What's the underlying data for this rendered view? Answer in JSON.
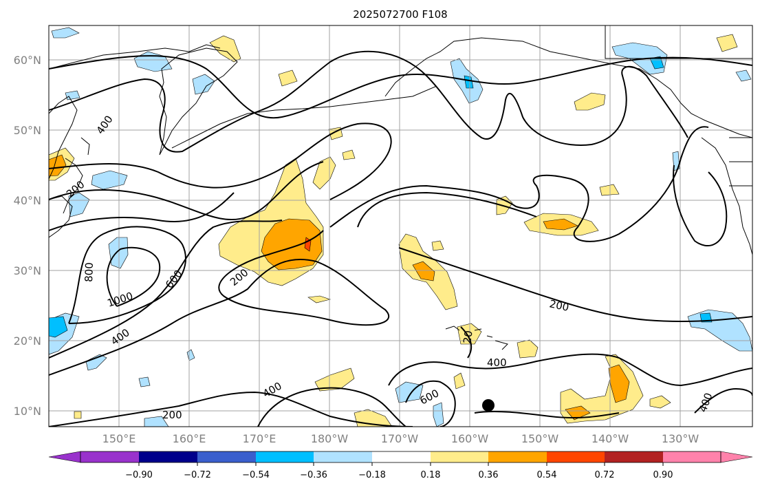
{
  "title": "2025072700 F108",
  "lat_labels": [
    {
      "text": "60°N",
      "lat": 60
    },
    {
      "text": "50°N",
      "lat": 50
    },
    {
      "text": "40°N",
      "lat": 40
    },
    {
      "text": "30°N",
      "lat": 30
    },
    {
      "text": "20°N",
      "lat": 20
    },
    {
      "text": "10°N",
      "lat": 10
    }
  ],
  "lon_labels": [
    {
      "text": "150°E",
      "lon": 150
    },
    {
      "text": "160°E",
      "lon": 160
    },
    {
      "text": "170°E",
      "lon": 170
    },
    {
      "text": "180°W",
      "lon": 180
    },
    {
      "text": "170°W",
      "lon": 190
    },
    {
      "text": "160°W",
      "lon": 200
    },
    {
      "text": "150°W",
      "lon": 210
    },
    {
      "text": "140°W",
      "lon": 220
    },
    {
      "text": "130°W",
      "lon": 230
    }
  ],
  "contour_labels": [
    "400",
    "200",
    "800",
    "1000",
    "600",
    "400",
    "200",
    "200",
    "400",
    "600",
    "400",
    "200",
    "20",
    "400"
  ],
  "colorbar": {
    "ticks": [
      "−0.90",
      "−0.72",
      "−0.54",
      "−0.36",
      "−0.18",
      "0.18",
      "0.36",
      "0.54",
      "0.72",
      "0.90"
    ],
    "colors": [
      "#9932cc",
      "#00008b",
      "#3a5fcd",
      "#00bfff",
      "#b0e2ff",
      "#ffffff",
      "#ffec8b",
      "#ffa500",
      "#ff4500",
      "#b22222",
      "#ff82ab"
    ]
  },
  "marker": {
    "label": "storm-center",
    "lat": 10.9,
    "lon": 202.5
  }
}
